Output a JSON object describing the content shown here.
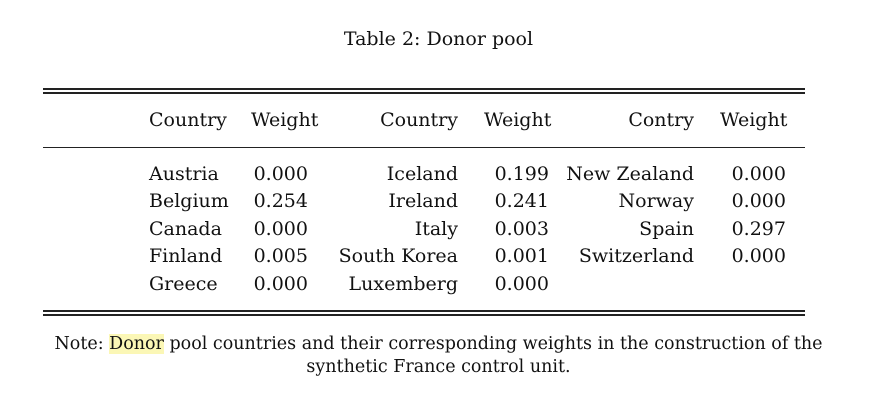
{
  "table": {
    "caption": "Table 2: Donor pool",
    "headers": [
      "Country",
      "Weight",
      "Country",
      "Weight",
      "Contry",
      "Weight"
    ],
    "columns": [
      {
        "rows": [
          {
            "country": "Austria",
            "weight": "0.000"
          },
          {
            "country": "Belgium",
            "weight": "0.254"
          },
          {
            "country": "Canada",
            "weight": "0.000"
          },
          {
            "country": "Finland",
            "weight": "0.005"
          },
          {
            "country": "Greece",
            "weight": "0.000"
          }
        ]
      },
      {
        "rows": [
          {
            "country": "Iceland",
            "weight": "0.199"
          },
          {
            "country": "Ireland",
            "weight": "0.241"
          },
          {
            "country": "Italy",
            "weight": "0.003"
          },
          {
            "country": "South Korea",
            "weight": "0.001"
          },
          {
            "country": "Luxemberg",
            "weight": "0.000"
          }
        ]
      },
      {
        "rows": [
          {
            "country": "New Zealand",
            "weight": "0.000"
          },
          {
            "country": "Norway",
            "weight": "0.000"
          },
          {
            "country": "Spain",
            "weight": "0.297"
          },
          {
            "country": "Switzerland",
            "weight": "0.000"
          }
        ]
      }
    ]
  },
  "note": {
    "prefix": "Note: ",
    "highlighted": "Donor",
    "rest": " pool countries and their corresponding weights in the construction of the synthetic France control unit."
  },
  "colors": {
    "highlight": "#fbf7b6",
    "text": "#111111",
    "rule": "#222222"
  }
}
